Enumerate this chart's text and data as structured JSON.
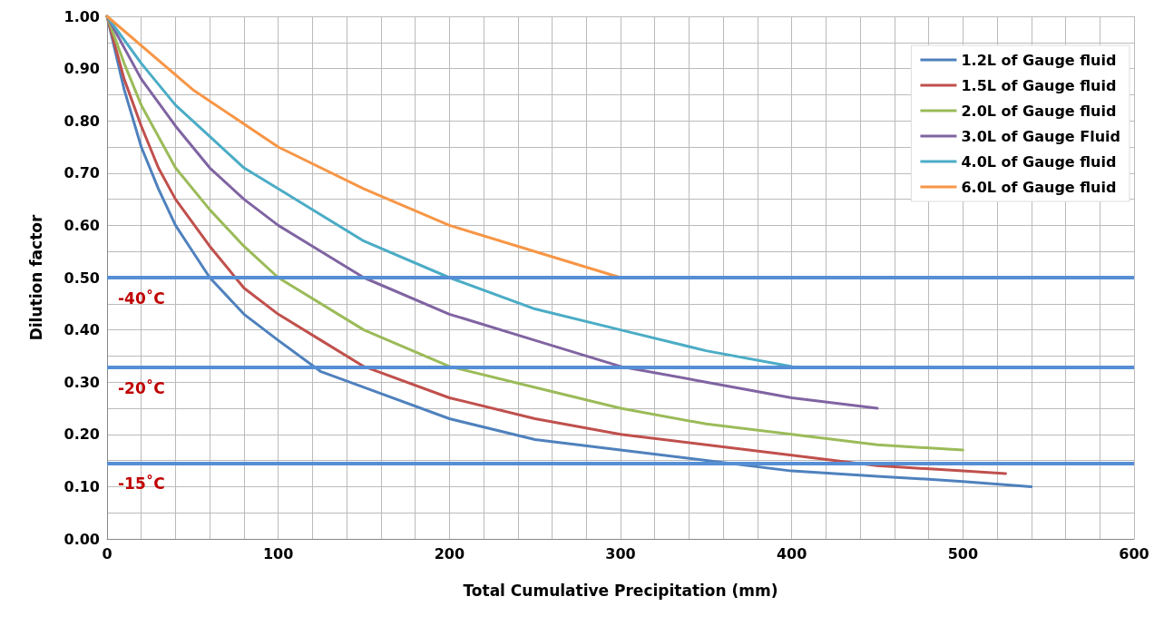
{
  "chart_data": {
    "type": "line",
    "xlabel": "Total Cumulative Precipitation (mm)",
    "ylabel": "Dilution factor",
    "xlim": [
      0,
      600
    ],
    "ylim": [
      0,
      1
    ],
    "xticks": [
      0,
      {
        "value": 20,
        "label": null
      },
      {
        "value": 40,
        "label": null
      },
      {
        "value": 60,
        "label": null
      },
      {
        "value": 80,
        "label": null
      },
      100,
      {
        "value": 120,
        "label": null
      },
      {
        "value": 140,
        "label": null
      },
      {
        "value": 160,
        "label": null
      },
      {
        "value": 180,
        "label": null
      },
      200,
      {
        "value": 220,
        "label": null
      },
      {
        "value": 240,
        "label": null
      },
      {
        "value": 260,
        "label": null
      },
      {
        "value": 280,
        "label": null
      },
      300,
      {
        "value": 320,
        "label": null
      },
      {
        "value": 340,
        "label": null
      },
      {
        "value": 360,
        "label": null
      },
      {
        "value": 380,
        "label": null
      },
      400,
      {
        "value": 420,
        "label": null
      },
      {
        "value": 440,
        "label": null
      },
      {
        "value": 460,
        "label": null
      },
      {
        "value": 480,
        "label": null
      },
      500,
      {
        "value": 520,
        "label": null
      },
      {
        "value": 540,
        "label": null
      },
      {
        "value": 560,
        "label": null
      },
      {
        "value": 580,
        "label": null
      },
      600
    ],
    "yticks": [
      {
        "value": 0,
        "label": "0.00"
      },
      {
        "value": 0.05,
        "label": null
      },
      {
        "value": 0.1,
        "label": "0.10"
      },
      {
        "value": 0.15,
        "label": null
      },
      {
        "value": 0.2,
        "label": "0.20"
      },
      {
        "value": 0.25,
        "label": null
      },
      {
        "value": 0.3,
        "label": "0.30"
      },
      {
        "value": 0.35,
        "label": null
      },
      {
        "value": 0.4,
        "label": "0.40"
      },
      {
        "value": 0.45,
        "label": null
      },
      {
        "value": 0.5,
        "label": "0.50"
      },
      {
        "value": 0.55,
        "label": null
      },
      {
        "value": 0.6,
        "label": "0.60"
      },
      {
        "value": 0.65,
        "label": null
      },
      {
        "value": 0.7,
        "label": "0.70"
      },
      {
        "value": 0.75,
        "label": null
      },
      {
        "value": 0.8,
        "label": "0.80"
      },
      {
        "value": 0.85,
        "label": null
      },
      {
        "value": 0.9,
        "label": "0.90"
      },
      {
        "value": 0.95,
        "label": null
      },
      {
        "value": 1,
        "label": "1.00"
      }
    ],
    "grid": true,
    "legend": "top right",
    "marker": "none",
    "line_style": "solid",
    "series": [
      {
        "name": "1.2L of Gauge fluid",
        "color": "#4f81bd",
        "x": [
          0,
          10,
          20,
          30,
          40,
          50,
          60,
          80,
          100,
          125,
          150,
          200,
          250,
          300,
          350,
          400,
          450,
          500,
          540
        ],
        "values": [
          1,
          0.86,
          0.75,
          0.67,
          0.6,
          0.55,
          0.5,
          0.43,
          0.38,
          0.32,
          0.29,
          0.23,
          0.19,
          0.17,
          0.15,
          0.13,
          0.12,
          0.11,
          0.1
        ]
      },
      {
        "name": "1.5L of Gauge fluid",
        "color": "#c0504d",
        "x": [
          0,
          10,
          20,
          30,
          40,
          60,
          80,
          100,
          125,
          150,
          200,
          250,
          300,
          350,
          400,
          450,
          500,
          525
        ],
        "values": [
          1,
          0.88,
          0.79,
          0.71,
          0.65,
          0.56,
          0.48,
          0.43,
          0.38,
          0.33,
          0.27,
          0.23,
          0.2,
          0.18,
          0.16,
          0.14,
          0.13,
          0.125
        ]
      },
      {
        "name": "2.0L of Gauge fluid",
        "color": "#9bbb59",
        "x": [
          0,
          10,
          20,
          40,
          60,
          80,
          100,
          150,
          200,
          250,
          300,
          350,
          400,
          450,
          500
        ],
        "values": [
          1,
          0.91,
          0.83,
          0.71,
          0.63,
          0.56,
          0.5,
          0.4,
          0.33,
          0.29,
          0.25,
          0.22,
          0.2,
          0.18,
          0.17
        ]
      },
      {
        "name": "3.0L of Gauge Fluid",
        "color": "#8064a2",
        "x": [
          0,
          20,
          40,
          60,
          80,
          100,
          150,
          200,
          250,
          300,
          350,
          400,
          450
        ],
        "values": [
          1,
          0.88,
          0.79,
          0.71,
          0.65,
          0.6,
          0.5,
          0.43,
          0.38,
          0.33,
          0.3,
          0.27,
          0.25
        ]
      },
      {
        "name": "4.0L of Gauge fluid",
        "color": "#4bacc6",
        "x": [
          0,
          20,
          40,
          60,
          80,
          100,
          150,
          200,
          250,
          300,
          350,
          400
        ],
        "values": [
          1,
          0.91,
          0.83,
          0.77,
          0.71,
          0.67,
          0.57,
          0.5,
          0.44,
          0.4,
          0.36,
          0.33
        ]
      },
      {
        "name": "6.0L of Gauge fluid",
        "color": "#f79646",
        "x": [
          0,
          50,
          100,
          150,
          200,
          250,
          300
        ],
        "values": [
          1,
          0.86,
          0.75,
          0.67,
          0.6,
          0.55,
          0.5
        ]
      }
    ],
    "ref_lines": [
      {
        "axis": "y",
        "value": 0.5,
        "label": "-40˚C",
        "color": "#558ed5"
      },
      {
        "axis": "y",
        "value": 0.328,
        "label": "-20˚C",
        "color": "#558ed5"
      },
      {
        "axis": "y",
        "value": 0.145,
        "label": "-15˚C",
        "color": "#558ed5"
      }
    ]
  }
}
